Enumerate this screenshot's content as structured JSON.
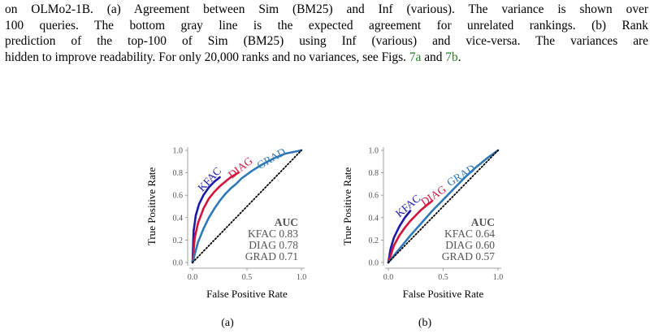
{
  "caption": {
    "line1": "on OLMo2-1B. (a) Agreement between Sim (BM25) and Inf (various). The variance is shown over",
    "line2": "100 queries.  The bottom gray line is the expected agreement for unrelated rankings.  (b) Rank",
    "line3": "prediction of the top-100 of Sim (BM25) using Inf (various) and vice-versa.  The variances are",
    "line4_pre": "hidden to improve readability. For only 20,000 ranks and no variances, see Figs. ",
    "ref_a": "7a",
    "and": " and ",
    "ref_b": "7b",
    "line4_post": "."
  },
  "colors": {
    "KFAC": "#1a1aa6",
    "DIAG": "#d2143c",
    "GRAD": "#2e78b8"
  },
  "chart_data": [
    {
      "type": "line",
      "panel": "(a)",
      "xlabel": "False Positive Rate",
      "ylabel": "True Positive Rate",
      "xlim": [
        0,
        1
      ],
      "ylim": [
        0,
        1
      ],
      "xticks": [
        "0.0",
        "0.5",
        "1.0"
      ],
      "yticks": [
        "0.0",
        "0.2",
        "0.4",
        "0.6",
        "0.8",
        "1.0"
      ],
      "auc_title": "AUC",
      "auc": [
        "KFAC 0.83",
        "DIAG 0.78",
        "GRAD 0.71"
      ],
      "series": [
        {
          "name": "KFAC",
          "color": "#1a1aa6",
          "x": [
            0,
            0.01,
            0.03,
            0.06,
            0.1,
            0.15,
            0.2,
            0.25
          ],
          "y": [
            0,
            0.28,
            0.42,
            0.52,
            0.6,
            0.67,
            0.72,
            0.76
          ]
        },
        {
          "name": "DIAG",
          "color": "#d2143c",
          "x": [
            0,
            0.02,
            0.05,
            0.1,
            0.15,
            0.2,
            0.25,
            0.3,
            0.35,
            0.42
          ],
          "y": [
            0,
            0.22,
            0.35,
            0.48,
            0.57,
            0.63,
            0.68,
            0.72,
            0.76,
            0.8
          ]
        },
        {
          "name": "GRAD",
          "color": "#2e78b8",
          "x": [
            0,
            0.05,
            0.1,
            0.15,
            0.2,
            0.25,
            0.3,
            0.35,
            0.4,
            0.45,
            0.55,
            0.65,
            0.75,
            0.85,
            0.95,
            1.0
          ],
          "y": [
            0,
            0.18,
            0.3,
            0.4,
            0.48,
            0.55,
            0.61,
            0.66,
            0.7,
            0.75,
            0.82,
            0.88,
            0.93,
            0.97,
            0.99,
            1.0
          ]
        },
        {
          "name": "random",
          "color": "#000000",
          "style": "dotted",
          "x": [
            0,
            1
          ],
          "y": [
            0,
            1
          ]
        }
      ]
    },
    {
      "type": "line",
      "panel": "(b)",
      "xlabel": "False Positive Rate",
      "ylabel": "True Positive Rate",
      "xlim": [
        0,
        1
      ],
      "ylim": [
        0,
        1
      ],
      "xticks": [
        "0.0",
        "0.5",
        "1.0"
      ],
      "yticks": [
        "0.0",
        "0.2",
        "0.4",
        "0.6",
        "0.8",
        "1.0"
      ],
      "auc_title": "AUC",
      "auc": [
        "KFAC 0.64",
        "DIAG 0.60",
        "GRAD 0.57"
      ],
      "series": [
        {
          "name": "KFAC",
          "color": "#1a1aa6",
          "x": [
            0,
            0.02,
            0.05,
            0.1,
            0.15,
            0.2
          ],
          "y": [
            0,
            0.12,
            0.22,
            0.32,
            0.4,
            0.46
          ]
        },
        {
          "name": "DIAG",
          "color": "#d2143c",
          "x": [
            0,
            0.05,
            0.1,
            0.15,
            0.2,
            0.25,
            0.3,
            0.35,
            0.4
          ],
          "y": [
            0,
            0.15,
            0.24,
            0.31,
            0.37,
            0.42,
            0.47,
            0.51,
            0.55
          ]
        },
        {
          "name": "GRAD",
          "color": "#2e78b8",
          "x": [
            0,
            0.1,
            0.2,
            0.3,
            0.4,
            0.5,
            0.6,
            0.7,
            0.8,
            0.9,
            1.0
          ],
          "y": [
            0,
            0.12,
            0.24,
            0.35,
            0.46,
            0.56,
            0.66,
            0.76,
            0.85,
            0.93,
            1.0
          ]
        },
        {
          "name": "random",
          "color": "#000000",
          "style": "dotted",
          "x": [
            0,
            1
          ],
          "y": [
            0,
            1
          ]
        }
      ]
    }
  ],
  "labels": {
    "a": "(a)",
    "b": "(b)"
  }
}
